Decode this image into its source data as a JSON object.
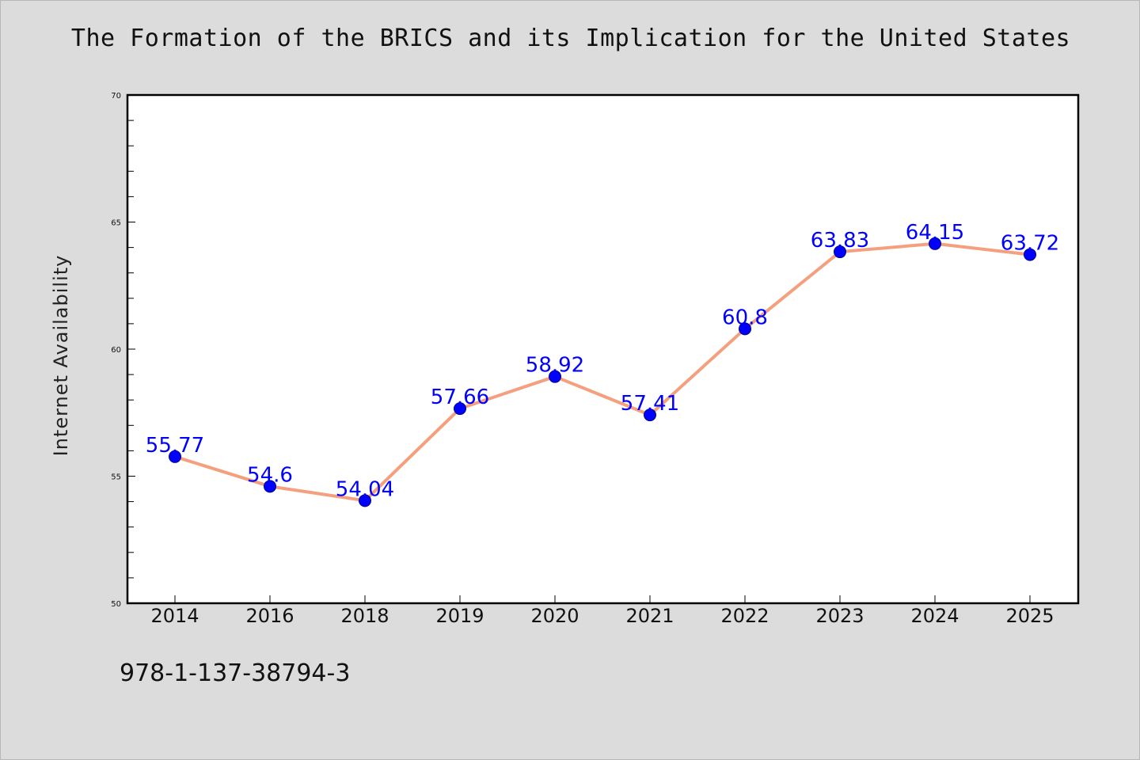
{
  "chart_data": {
    "type": "line",
    "title": "The Formation of the BRICS and its Implication for the United States",
    "xlabel": "",
    "ylabel": "Internet Availability",
    "categories": [
      "2014",
      "2016",
      "2018",
      "2019",
      "2020",
      "2021",
      "2022",
      "2023",
      "2024",
      "2025"
    ],
    "series": [
      {
        "values": [
          55.77,
          54.6,
          54.04,
          57.66,
          58.92,
          57.41,
          60.8,
          63.83,
          64.15,
          63.72
        ],
        "data_labels": [
          "55.77",
          "54.6",
          "54.04",
          "57.66",
          "58.92",
          "57.41",
          "60.8",
          "63.83",
          "64.15",
          "63.72"
        ]
      }
    ],
    "ylim": [
      50,
      70
    ],
    "yticks": [
      50,
      55,
      60,
      65,
      70
    ],
    "grid": false,
    "colors": {
      "line": "#f4a07e",
      "marker": "#0000ff",
      "marker_edge": "#00008b",
      "label": "#0000ff"
    }
  },
  "footer": {
    "text": "978-1-137-38794-3"
  }
}
